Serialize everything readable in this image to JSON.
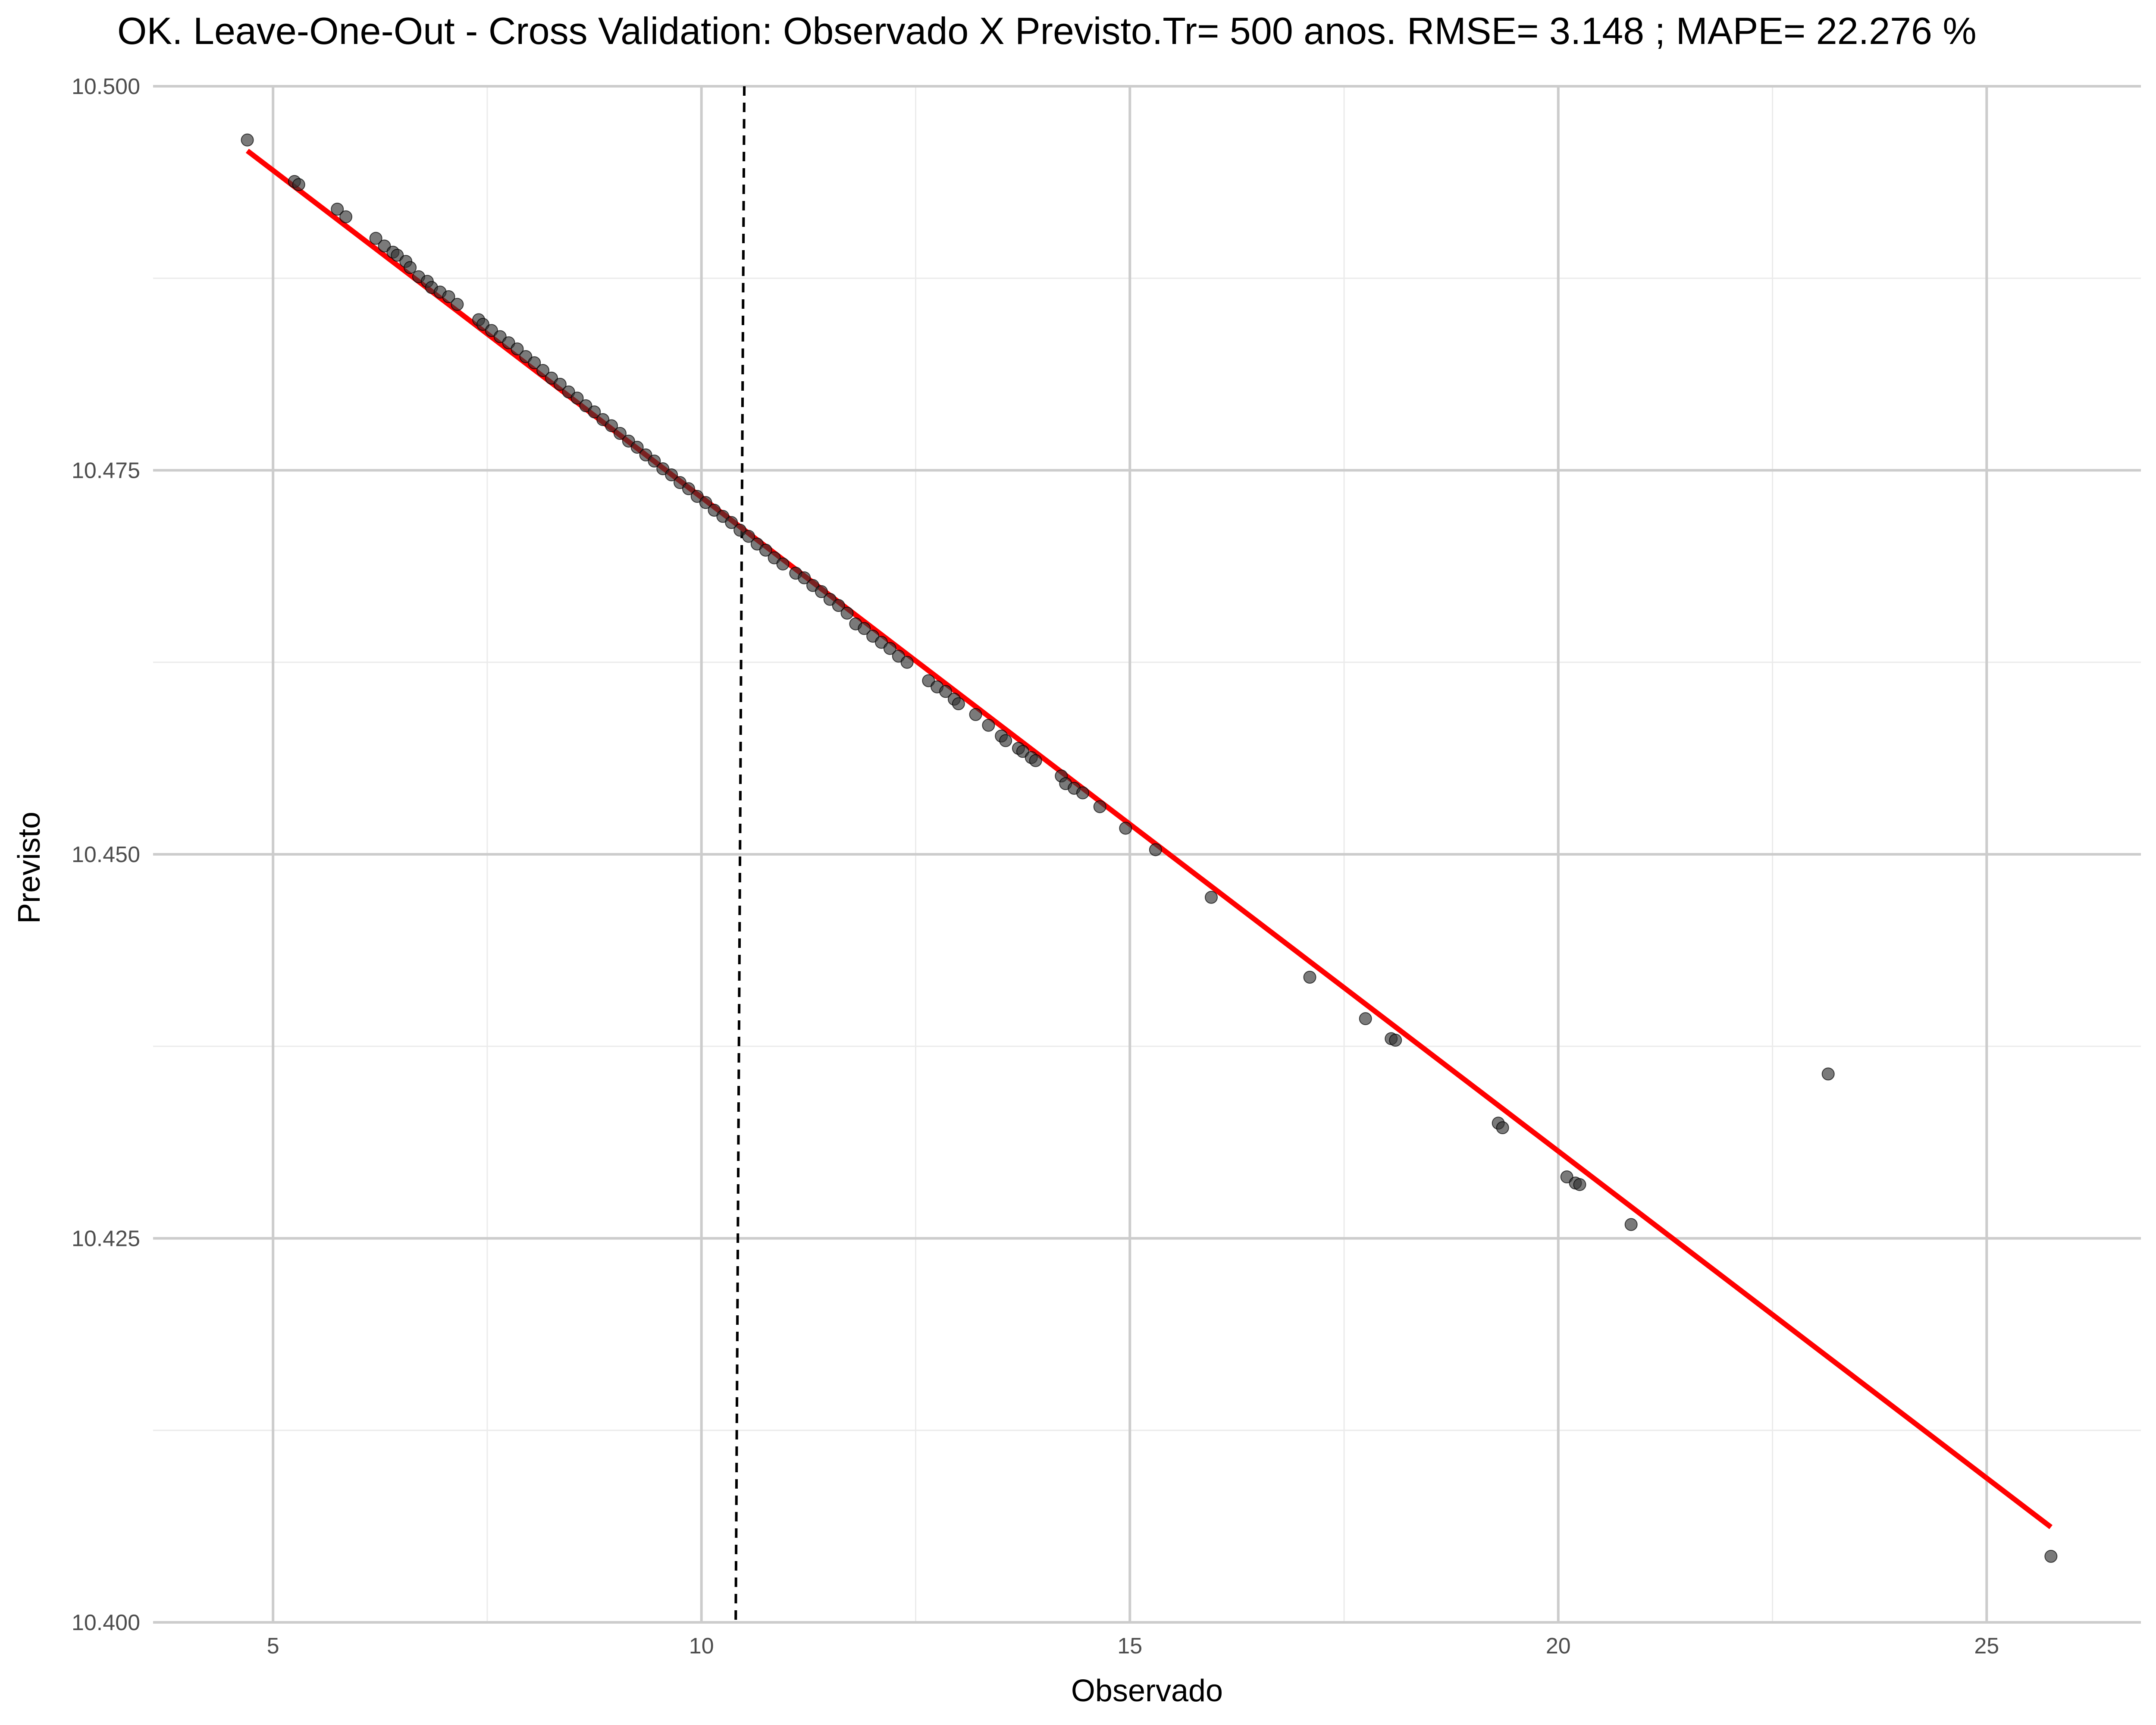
{
  "chart_data": {
    "type": "scatter",
    "title": "OK. Leave-One-Out - Cross Validation: Observado X Previsto.Tr= 500 anos. RMSE= 3.148 ; MAPE= 22.276 %",
    "xlabel": "Observado",
    "ylabel": "Previsto",
    "xlim": [
      3.6,
      26.8
    ],
    "ylim": [
      10.4,
      10.5
    ],
    "x_ticks": [
      5,
      10,
      15,
      20,
      25
    ],
    "x_tick_labels": [
      "5",
      "10",
      "15",
      "20",
      "25"
    ],
    "y_ticks": [
      10.4,
      10.425,
      10.45,
      10.475,
      10.5
    ],
    "y_tick_labels": [
      "10.400",
      "10.425",
      "10.450",
      "10.475",
      "10.500"
    ],
    "grid": true,
    "legend": "none",
    "colors": {
      "points": "#333333",
      "fit_line": "#ff0000",
      "vline": "#000000",
      "grid_major": "#cccccc",
      "grid_minor": "#ebebeb"
    },
    "points": {
      "x": [
        4.7,
        5.25,
        5.3,
        5.75,
        5.85,
        6.2,
        6.3,
        6.4,
        6.45,
        6.55,
        6.6,
        6.7,
        6.8,
        6.85,
        6.95,
        7.05,
        7.15,
        7.4,
        7.45,
        7.55,
        7.65,
        7.75,
        7.85,
        7.95,
        8.05,
        8.15,
        8.25,
        8.35,
        8.45,
        8.55,
        8.65,
        8.75,
        8.85,
        8.95,
        9.05,
        9.15,
        9.25,
        9.35,
        9.45,
        9.55,
        9.65,
        9.75,
        9.85,
        9.95,
        10.05,
        10.15,
        10.25,
        10.35,
        10.45,
        10.55,
        10.65,
        10.75,
        10.85,
        10.95,
        11.1,
        11.2,
        11.3,
        11.4,
        11.5,
        11.6,
        11.7,
        11.8,
        11.9,
        12.0,
        12.1,
        12.2,
        12.3,
        12.4,
        12.65,
        12.75,
        12.85,
        12.95,
        13.0,
        13.2,
        13.35,
        13.5,
        13.55,
        13.7,
        13.75,
        13.85,
        13.9,
        14.2,
        14.25,
        14.35,
        14.45,
        14.65,
        14.95,
        15.3,
        15.95,
        17.1,
        17.75,
        18.05,
        18.1,
        19.3,
        19.35,
        20.1,
        20.2,
        20.25,
        20.85,
        23.15,
        25.75
      ],
      "y": [
        10.4965,
        10.4938,
        10.4936,
        10.492,
        10.4915,
        10.4901,
        10.4896,
        10.4892,
        10.489,
        10.4886,
        10.4882,
        10.4876,
        10.4873,
        10.4869,
        10.4866,
        10.4863,
        10.4858,
        10.4848,
        10.4845,
        10.4841,
        10.4837,
        10.4833,
        10.4829,
        10.4824,
        10.482,
        10.4815,
        10.481,
        10.4806,
        10.4801,
        10.4797,
        10.4792,
        10.4788,
        10.4783,
        10.4779,
        10.4774,
        10.4769,
        10.4765,
        10.476,
        10.4756,
        10.4751,
        10.4747,
        10.4742,
        10.4738,
        10.4733,
        10.4729,
        10.4724,
        10.472,
        10.4716,
        10.4711,
        10.4707,
        10.4702,
        10.4698,
        10.4693,
        10.4689,
        10.4683,
        10.468,
        10.4675,
        10.4671,
        10.4666,
        10.4662,
        10.4657,
        10.465,
        10.4647,
        10.4642,
        10.4638,
        10.4634,
        10.4629,
        10.4625,
        10.4613,
        10.4609,
        10.4606,
        10.4601,
        10.4598,
        10.4591,
        10.4584,
        10.4577,
        10.4574,
        10.4569,
        10.4567,
        10.4563,
        10.4561,
        10.4551,
        10.4546,
        10.4543,
        10.454,
        10.4531,
        10.4517,
        10.4503,
        10.4472,
        10.442,
        10.4393,
        10.438,
        10.4379,
        10.4325,
        10.4322,
        10.429,
        10.4286,
        10.4285,
        10.4259,
        10.4357,
        10.4043
      ]
    },
    "fit_line": {
      "x": [
        4.7,
        25.75
      ],
      "y": [
        10.4958,
        10.4062
      ]
    },
    "vline": {
      "x_top": 10.5,
      "x_bottom": 10.4
    }
  }
}
